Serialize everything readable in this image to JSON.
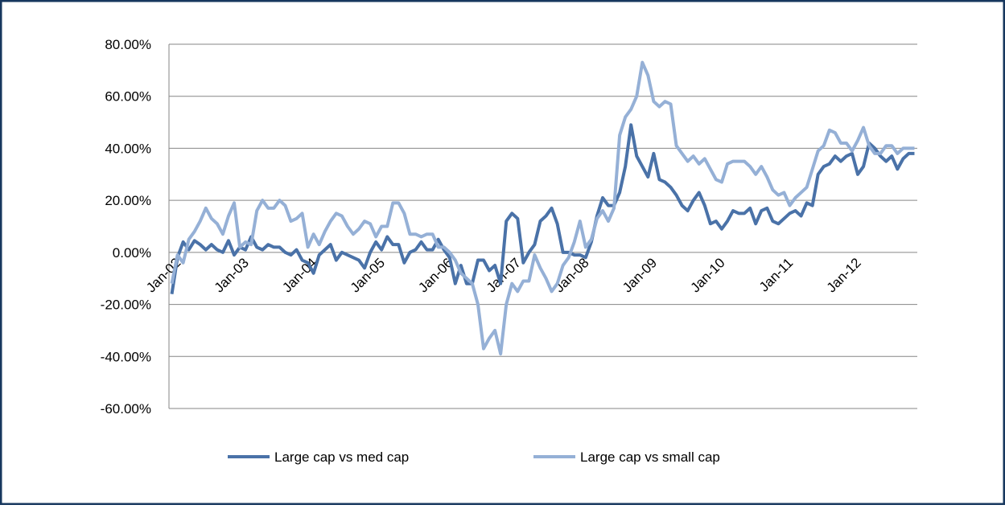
{
  "chart_data": {
    "type": "line",
    "categories": [
      "Jan-02",
      null,
      null,
      null,
      null,
      null,
      null,
      null,
      null,
      null,
      null,
      null,
      "Jan-03",
      null,
      null,
      null,
      null,
      null,
      null,
      null,
      null,
      null,
      null,
      null,
      "Jan-04",
      null,
      null,
      null,
      null,
      null,
      null,
      null,
      null,
      null,
      null,
      null,
      "Jan-05",
      null,
      null,
      null,
      null,
      null,
      null,
      null,
      null,
      null,
      null,
      null,
      "Jan-06",
      null,
      null,
      null,
      null,
      null,
      null,
      null,
      null,
      null,
      null,
      null,
      "Jan-07",
      null,
      null,
      null,
      null,
      null,
      null,
      null,
      null,
      null,
      null,
      null,
      "Jan-08",
      null,
      null,
      null,
      null,
      null,
      null,
      null,
      null,
      null,
      null,
      null,
      "Jan-09",
      null,
      null,
      null,
      null,
      null,
      null,
      null,
      null,
      null,
      null,
      null,
      "Jan-10",
      null,
      null,
      null,
      null,
      null,
      null,
      null,
      null,
      null,
      null,
      null,
      "Jan-11",
      null,
      null,
      null,
      null,
      null,
      null,
      null,
      null,
      null,
      null,
      null,
      "Jan-12",
      null,
      null,
      null,
      null,
      null,
      null,
      null,
      null,
      null,
      null,
      null
    ],
    "series": [
      {
        "name": "Large cap vs med cap",
        "color": "#4a72a8",
        "values": [
          -16,
          -2,
          4,
          1,
          4.5,
          3,
          1,
          3,
          1,
          0,
          4.5,
          -1,
          2,
          1,
          6,
          2,
          1,
          3,
          2,
          2,
          0,
          -1,
          1,
          -3,
          -4,
          -8,
          -1,
          1,
          3,
          -3,
          0,
          -1,
          -2,
          -3,
          -6,
          0,
          4,
          1,
          6,
          3,
          3,
          -4,
          0,
          1,
          4,
          1,
          1,
          5,
          1,
          -2,
          -12,
          -5,
          -12,
          -12,
          -3,
          -3,
          -7,
          -5,
          -12,
          12,
          15,
          13,
          -4,
          0,
          3,
          12,
          14,
          17,
          11,
          0,
          0,
          -1,
          -1,
          -2,
          4,
          14,
          21,
          18,
          18,
          23,
          33,
          49,
          37,
          33,
          29,
          38,
          28,
          27,
          25,
          22,
          18,
          16,
          20,
          23,
          18,
          11,
          12,
          9,
          12,
          16,
          15,
          15,
          17,
          11,
          16,
          17,
          12,
          11,
          13,
          15,
          16,
          14,
          19,
          18,
          30,
          33,
          34,
          37,
          35,
          37,
          38,
          30,
          33,
          42,
          40,
          37,
          35,
          37,
          32,
          36,
          38,
          38
        ]
      },
      {
        "name": "Large cap vs small cap",
        "color": "#95b0d6",
        "values": [
          -12,
          -1,
          -4,
          5,
          8,
          12,
          17,
          13,
          11,
          7,
          14,
          19,
          2,
          4,
          3,
          16,
          20,
          17,
          17,
          20,
          18,
          12,
          13,
          15,
          2,
          7,
          3,
          8,
          12,
          15,
          14,
          10,
          7,
          9,
          12,
          11,
          6,
          10,
          10,
          19,
          19,
          15,
          7,
          7,
          6,
          7,
          7,
          2,
          2,
          0,
          -3,
          -8,
          -10,
          -12,
          -20,
          -37,
          -33,
          -30,
          -39,
          -20,
          -12,
          -15,
          -11,
          -11,
          -1,
          -6,
          -10,
          -15,
          -12,
          -5,
          -2,
          4,
          12,
          2,
          5,
          13,
          16,
          12,
          17,
          45,
          52,
          55,
          60,
          73,
          68,
          58,
          56,
          58,
          57,
          41,
          38,
          35,
          37,
          34,
          36,
          32,
          28,
          27,
          34,
          35,
          35,
          35,
          33,
          30,
          33,
          29,
          24,
          22,
          23,
          18,
          21,
          23,
          25,
          32,
          39,
          41,
          47,
          46,
          42,
          42,
          39,
          43,
          48,
          41,
          38,
          38,
          41,
          41,
          38,
          40,
          40,
          40
        ]
      }
    ],
    "ylim": [
      -60,
      80
    ],
    "yticks": [
      {
        "value": -60,
        "label": "-60.00%"
      },
      {
        "value": -40,
        "label": "-40.00%"
      },
      {
        "value": -20,
        "label": "-20.00%"
      },
      {
        "value": 0,
        "label": "0.00%"
      },
      {
        "value": 20,
        "label": "20.00%"
      },
      {
        "value": 40,
        "label": "40.00%"
      },
      {
        "value": 60,
        "label": "60.00%"
      },
      {
        "value": 80,
        "label": "80.00%"
      }
    ],
    "grid": true,
    "legend": "bottom"
  }
}
